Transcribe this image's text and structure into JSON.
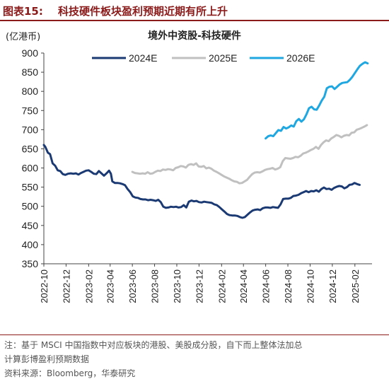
{
  "figure": {
    "number": "图表15:",
    "title": "科技硬件板块盈利预期近期有所上升"
  },
  "chart_data": {
    "type": "line",
    "title": "境外中资股-科技硬件",
    "unit_label": "(亿港币)",
    "ylim": [
      350,
      900
    ],
    "yticks": [
      350,
      400,
      450,
      500,
      550,
      600,
      650,
      700,
      750,
      800,
      850,
      900
    ],
    "xlim": [
      "2022-10-01",
      "2025-03-20"
    ],
    "xticks": [
      "2022-10",
      "2022-12",
      "2023-02",
      "2023-04",
      "2023-06",
      "2023-08",
      "2023-10",
      "2023-12",
      "2024-02",
      "2024-04",
      "2024-06",
      "2024-08",
      "2024-10",
      "2024-12",
      "2025-02"
    ],
    "legend_position": "top",
    "grid": false,
    "series": [
      {
        "name": "2024E",
        "color": "#1b3a73",
        "points": [
          [
            "2022-10-01",
            660
          ],
          [
            "2022-10-05",
            655
          ],
          [
            "2022-10-12",
            640
          ],
          [
            "2022-10-18",
            636
          ],
          [
            "2022-10-25",
            612
          ],
          [
            "2022-11-01",
            606
          ],
          [
            "2022-11-08",
            594
          ],
          [
            "2022-11-15",
            592
          ],
          [
            "2022-11-22",
            584
          ],
          [
            "2022-11-29",
            582
          ],
          [
            "2022-12-06",
            585
          ],
          [
            "2022-12-14",
            586
          ],
          [
            "2022-12-21",
            585
          ],
          [
            "2022-12-28",
            586
          ],
          [
            "2023-01-04",
            583
          ],
          [
            "2023-01-11",
            587
          ],
          [
            "2023-01-18",
            590
          ],
          [
            "2023-01-25",
            593
          ],
          [
            "2023-02-01",
            594
          ],
          [
            "2023-02-08",
            590
          ],
          [
            "2023-02-15",
            585
          ],
          [
            "2023-02-22",
            584
          ],
          [
            "2023-03-01",
            592
          ],
          [
            "2023-03-08",
            586
          ],
          [
            "2023-03-15",
            580
          ],
          [
            "2023-03-22",
            586
          ],
          [
            "2023-03-29",
            593
          ],
          [
            "2023-04-03",
            585
          ],
          [
            "2023-04-07",
            565
          ],
          [
            "2023-04-14",
            561
          ],
          [
            "2023-04-21",
            561
          ],
          [
            "2023-04-28",
            560
          ],
          [
            "2023-05-05",
            558
          ],
          [
            "2023-05-12",
            555
          ],
          [
            "2023-05-19",
            545
          ],
          [
            "2023-05-26",
            537
          ],
          [
            "2023-06-02",
            526
          ],
          [
            "2023-06-09",
            523
          ],
          [
            "2023-06-16",
            522
          ],
          [
            "2023-06-23",
            519
          ],
          [
            "2023-06-30",
            518
          ],
          [
            "2023-07-07",
            518
          ],
          [
            "2023-07-14",
            516
          ],
          [
            "2023-07-21",
            517
          ],
          [
            "2023-07-28",
            516
          ],
          [
            "2023-08-04",
            514
          ],
          [
            "2023-08-11",
            517
          ],
          [
            "2023-08-18",
            511
          ],
          [
            "2023-08-25",
            499
          ],
          [
            "2023-09-01",
            496
          ],
          [
            "2023-09-08",
            497
          ],
          [
            "2023-09-15",
            499
          ],
          [
            "2023-09-22",
            498
          ],
          [
            "2023-09-29",
            499
          ],
          [
            "2023-10-06",
            497
          ],
          [
            "2023-10-13",
            498
          ],
          [
            "2023-10-20",
            503
          ],
          [
            "2023-10-27",
            497
          ],
          [
            "2023-11-03",
            512
          ],
          [
            "2023-11-10",
            515
          ],
          [
            "2023-11-17",
            513
          ],
          [
            "2023-11-24",
            514
          ],
          [
            "2023-12-01",
            511
          ],
          [
            "2023-12-08",
            510
          ],
          [
            "2023-12-15",
            512
          ],
          [
            "2023-12-22",
            511
          ],
          [
            "2023-12-29",
            510
          ],
          [
            "2024-01-05",
            509
          ],
          [
            "2024-01-12",
            505
          ],
          [
            "2024-01-19",
            503
          ],
          [
            "2024-01-26",
            498
          ],
          [
            "2024-02-02",
            492
          ],
          [
            "2024-02-09",
            486
          ],
          [
            "2024-02-16",
            480
          ],
          [
            "2024-02-23",
            477
          ],
          [
            "2024-03-01",
            476
          ],
          [
            "2024-03-08",
            476
          ],
          [
            "2024-03-15",
            475
          ],
          [
            "2024-03-22",
            472
          ],
          [
            "2024-03-29",
            470
          ],
          [
            "2024-04-05",
            472
          ],
          [
            "2024-04-12",
            478
          ],
          [
            "2024-04-19",
            484
          ],
          [
            "2024-04-26",
            489
          ],
          [
            "2024-05-03",
            491
          ],
          [
            "2024-05-10",
            492
          ],
          [
            "2024-05-17",
            490
          ],
          [
            "2024-05-24",
            495
          ],
          [
            "2024-05-31",
            497
          ],
          [
            "2024-06-07",
            497
          ],
          [
            "2024-06-14",
            496
          ],
          [
            "2024-06-21",
            498
          ],
          [
            "2024-06-28",
            497
          ],
          [
            "2024-07-05",
            496
          ],
          [
            "2024-07-12",
            505
          ],
          [
            "2024-07-19",
            519
          ],
          [
            "2024-07-26",
            520
          ],
          [
            "2024-08-02",
            520
          ],
          [
            "2024-08-09",
            522
          ],
          [
            "2024-08-16",
            527
          ],
          [
            "2024-08-23",
            528
          ],
          [
            "2024-08-30",
            530
          ],
          [
            "2024-09-06",
            534
          ],
          [
            "2024-09-13",
            537
          ],
          [
            "2024-09-20",
            540
          ],
          [
            "2024-09-27",
            537
          ],
          [
            "2024-10-04",
            540
          ],
          [
            "2024-10-11",
            539
          ],
          [
            "2024-10-18",
            542
          ],
          [
            "2024-10-25",
            538
          ],
          [
            "2024-11-01",
            545
          ],
          [
            "2024-11-08",
            549
          ],
          [
            "2024-11-15",
            545
          ],
          [
            "2024-11-22",
            546
          ],
          [
            "2024-11-29",
            543
          ],
          [
            "2024-12-06",
            548
          ],
          [
            "2024-12-13",
            551
          ],
          [
            "2024-12-20",
            553
          ],
          [
            "2024-12-27",
            552
          ],
          [
            "2025-01-03",
            547
          ],
          [
            "2025-01-10",
            550
          ],
          [
            "2025-01-17",
            556
          ],
          [
            "2025-01-24",
            557
          ],
          [
            "2025-01-31",
            561
          ],
          [
            "2025-02-07",
            558
          ],
          [
            "2025-02-14",
            556
          ]
        ]
      },
      {
        "name": "2025E",
        "color": "#c0c0c0",
        "points": [
          [
            "2023-06-01",
            590
          ],
          [
            "2023-06-08",
            587
          ],
          [
            "2023-06-15",
            586
          ],
          [
            "2023-06-22",
            585
          ],
          [
            "2023-06-29",
            586
          ],
          [
            "2023-07-06",
            585
          ],
          [
            "2023-07-13",
            589
          ],
          [
            "2023-07-20",
            585
          ],
          [
            "2023-07-27",
            586
          ],
          [
            "2023-08-03",
            590
          ],
          [
            "2023-08-10",
            593
          ],
          [
            "2023-08-17",
            592
          ],
          [
            "2023-08-24",
            596
          ],
          [
            "2023-08-31",
            595
          ],
          [
            "2023-09-07",
            597
          ],
          [
            "2023-09-14",
            596
          ],
          [
            "2023-09-21",
            594
          ],
          [
            "2023-09-28",
            600
          ],
          [
            "2023-10-05",
            602
          ],
          [
            "2023-10-12",
            605
          ],
          [
            "2023-10-19",
            604
          ],
          [
            "2023-10-26",
            601
          ],
          [
            "2023-11-02",
            608
          ],
          [
            "2023-11-09",
            610
          ],
          [
            "2023-11-16",
            608
          ],
          [
            "2023-11-23",
            612
          ],
          [
            "2023-11-30",
            604
          ],
          [
            "2023-12-07",
            603
          ],
          [
            "2023-12-14",
            605
          ],
          [
            "2023-12-21",
            599
          ],
          [
            "2023-12-28",
            601
          ],
          [
            "2024-01-04",
            598
          ],
          [
            "2024-01-11",
            593
          ],
          [
            "2024-01-18",
            590
          ],
          [
            "2024-01-25",
            586
          ],
          [
            "2024-02-01",
            582
          ],
          [
            "2024-02-08",
            578
          ],
          [
            "2024-02-15",
            575
          ],
          [
            "2024-02-22",
            572
          ],
          [
            "2024-02-29",
            568
          ],
          [
            "2024-03-07",
            565
          ],
          [
            "2024-03-14",
            564
          ],
          [
            "2024-03-21",
            560
          ],
          [
            "2024-03-28",
            561
          ],
          [
            "2024-04-04",
            565
          ],
          [
            "2024-04-11",
            569
          ],
          [
            "2024-04-18",
            577
          ],
          [
            "2024-04-25",
            584
          ],
          [
            "2024-05-02",
            588
          ],
          [
            "2024-05-09",
            589
          ],
          [
            "2024-05-16",
            588
          ],
          [
            "2024-05-23",
            591
          ],
          [
            "2024-05-30",
            595
          ],
          [
            "2024-06-06",
            597
          ],
          [
            "2024-06-13",
            598
          ],
          [
            "2024-06-20",
            600
          ],
          [
            "2024-06-27",
            596
          ],
          [
            "2024-07-04",
            598
          ],
          [
            "2024-07-11",
            602
          ],
          [
            "2024-07-18",
            618
          ],
          [
            "2024-07-25",
            626
          ],
          [
            "2024-08-01",
            625
          ],
          [
            "2024-08-08",
            624
          ],
          [
            "2024-08-15",
            626
          ],
          [
            "2024-08-22",
            629
          ],
          [
            "2024-08-29",
            628
          ],
          [
            "2024-09-05",
            632
          ],
          [
            "2024-09-12",
            638
          ],
          [
            "2024-09-19",
            640
          ],
          [
            "2024-09-26",
            643
          ],
          [
            "2024-10-03",
            647
          ],
          [
            "2024-10-10",
            650
          ],
          [
            "2024-10-17",
            655
          ],
          [
            "2024-10-24",
            650
          ],
          [
            "2024-10-31",
            660
          ],
          [
            "2024-11-07",
            667
          ],
          [
            "2024-11-14",
            672
          ],
          [
            "2024-11-21",
            670
          ],
          [
            "2024-11-28",
            677
          ],
          [
            "2024-12-05",
            681
          ],
          [
            "2024-12-12",
            686
          ],
          [
            "2024-12-19",
            684
          ],
          [
            "2024-12-26",
            680
          ],
          [
            "2025-01-02",
            684
          ],
          [
            "2025-01-09",
            686
          ],
          [
            "2025-01-16",
            685
          ],
          [
            "2025-01-23",
            692
          ],
          [
            "2025-01-30",
            693
          ],
          [
            "2025-02-06",
            700
          ],
          [
            "2025-02-13",
            702
          ],
          [
            "2025-02-20",
            705
          ],
          [
            "2025-02-27",
            708
          ],
          [
            "2025-03-06",
            712
          ]
        ]
      },
      {
        "name": "2026E",
        "color": "#1ea7e1",
        "points": [
          [
            "2024-06-01",
            677
          ],
          [
            "2024-06-08",
            683
          ],
          [
            "2024-06-15",
            685
          ],
          [
            "2024-06-22",
            683
          ],
          [
            "2024-06-29",
            691
          ],
          [
            "2024-07-06",
            699
          ],
          [
            "2024-07-13",
            697
          ],
          [
            "2024-07-20",
            707
          ],
          [
            "2024-07-27",
            703
          ],
          [
            "2024-08-03",
            706
          ],
          [
            "2024-08-10",
            711
          ],
          [
            "2024-08-17",
            708
          ],
          [
            "2024-08-24",
            722
          ],
          [
            "2024-08-31",
            728
          ],
          [
            "2024-09-07",
            721
          ],
          [
            "2024-09-14",
            727
          ],
          [
            "2024-09-21",
            740
          ],
          [
            "2024-09-28",
            756
          ],
          [
            "2024-10-05",
            760
          ],
          [
            "2024-10-12",
            753
          ],
          [
            "2024-10-19",
            752
          ],
          [
            "2024-10-26",
            763
          ],
          [
            "2024-11-02",
            776
          ],
          [
            "2024-11-09",
            786
          ],
          [
            "2024-11-16",
            808
          ],
          [
            "2024-11-23",
            812
          ],
          [
            "2024-11-30",
            813
          ],
          [
            "2024-12-07",
            806
          ],
          [
            "2024-12-14",
            812
          ],
          [
            "2024-12-21",
            818
          ],
          [
            "2024-12-28",
            822
          ],
          [
            "2025-01-04",
            823
          ],
          [
            "2025-01-11",
            824
          ],
          [
            "2025-01-18",
            830
          ],
          [
            "2025-01-25",
            838
          ],
          [
            "2025-02-01",
            848
          ],
          [
            "2025-02-08",
            858
          ],
          [
            "2025-02-15",
            867
          ],
          [
            "2025-02-22",
            872
          ],
          [
            "2025-03-01",
            876
          ],
          [
            "2025-03-08",
            873
          ]
        ]
      }
    ]
  },
  "footer": {
    "note_line1": "注：基于 MSCI 中国指数中对应板块的港股、美股成分股，自下而上整体法加总",
    "note_line2": "计算彭博盈利预期数据",
    "source": "资料来源：Bloomberg，华泰研究"
  }
}
